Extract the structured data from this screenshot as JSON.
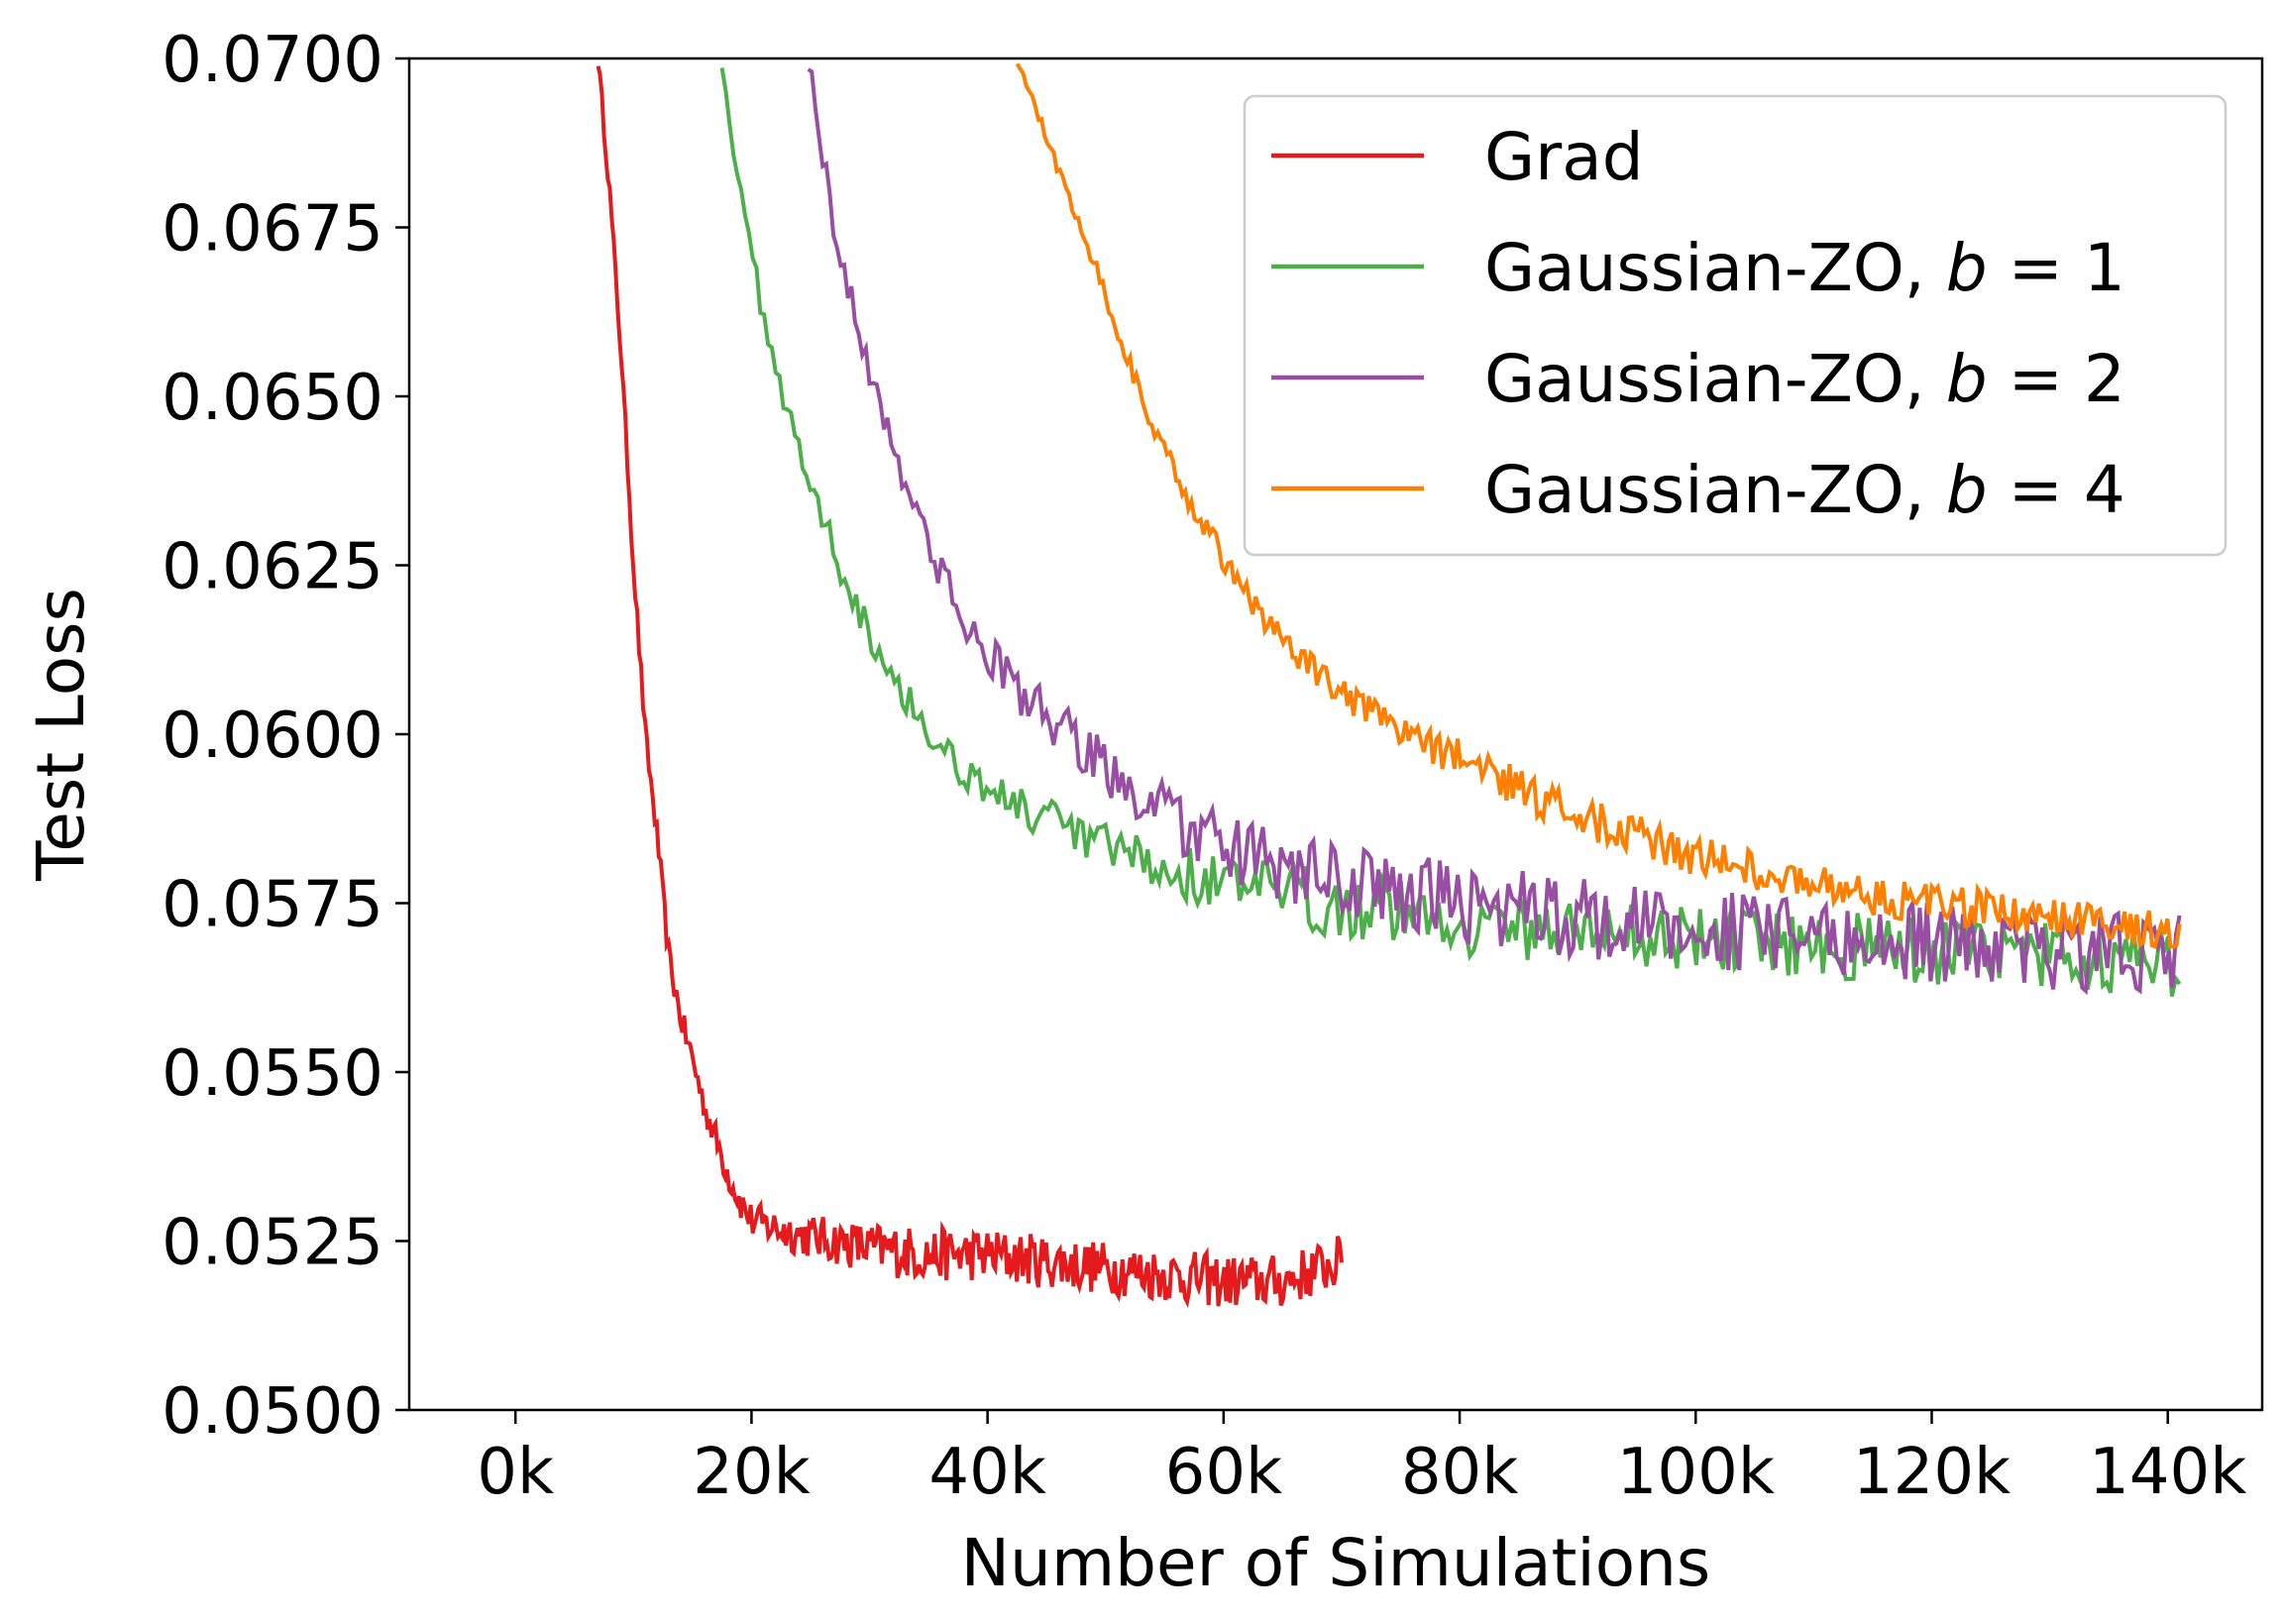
{
  "chart_data": {
    "type": "line",
    "title": "",
    "xlabel": "Number of Simulations",
    "ylabel": "Test Loss",
    "xlim": [
      -9000,
      148000
    ],
    "ylim": [
      0.05,
      0.07
    ],
    "xticks": [
      0,
      20000,
      40000,
      60000,
      80000,
      100000,
      120000,
      140000
    ],
    "xtick_labels": [
      "0k",
      "20k",
      "40k",
      "60k",
      "80k",
      "100k",
      "120k",
      "140k"
    ],
    "yticks": [
      0.05,
      0.0525,
      0.055,
      0.0575,
      0.06,
      0.0625,
      0.065,
      0.0675,
      0.07
    ],
    "ytick_labels": [
      "0.0500",
      "0.0525",
      "0.0550",
      "0.0575",
      "0.0600",
      "0.0625",
      "0.0650",
      "0.0675",
      "0.0700"
    ],
    "grid": false,
    "legend_position": "top-right",
    "series": [
      {
        "name": "Grad",
        "label_main": "Grad",
        "label_var": "",
        "label_rest": "",
        "color": "#e41a1c",
        "noise": 0.0004,
        "x": [
          7000,
          8000,
          9000,
          10000,
          11000,
          12000,
          13000,
          14000,
          15000,
          16000,
          17000,
          18000,
          19000,
          20000,
          22000,
          24000,
          27000,
          30000,
          35000,
          40000,
          45000,
          50000,
          55000,
          60000,
          65000,
          70000
        ],
        "y": [
          0.07,
          0.068,
          0.0655,
          0.0625,
          0.06,
          0.0585,
          0.0567,
          0.0558,
          0.0552,
          0.0545,
          0.054,
          0.0535,
          0.0531,
          0.0528,
          0.0527,
          0.0526,
          0.0525,
          0.0524,
          0.0523,
          0.0523,
          0.0522,
          0.0521,
          0.052,
          0.0519,
          0.0519,
          0.0522
        ]
      },
      {
        "name": "Gaussian-ZO, b = 1",
        "label_main": "Gaussian-ZO, ",
        "label_var": "b",
        "label_rest": " = 1",
        "color": "#4daf4a",
        "noise": 0.0005,
        "x": [
          17500,
          19000,
          21000,
          23000,
          25000,
          27500,
          30000,
          33000,
          36000,
          40000,
          45000,
          50000,
          55000,
          60000,
          65000,
          70000,
          75000,
          80000,
          90000,
          100000,
          110000,
          120000,
          130000,
          141000
        ],
        "y": [
          0.07,
          0.068,
          0.0662,
          0.0648,
          0.0637,
          0.0625,
          0.0615,
          0.0606,
          0.0598,
          0.0592,
          0.0587,
          0.0583,
          0.058,
          0.0578,
          0.0576,
          0.0575,
          0.0574,
          0.0572,
          0.0571,
          0.057,
          0.0569,
          0.0568,
          0.0567,
          0.0566
        ]
      },
      {
        "name": "Gaussian-ZO, b = 2",
        "label_main": "Gaussian-ZO, ",
        "label_var": "b",
        "label_rest": " = 2",
        "color": "#984ea3",
        "noise": 0.0006,
        "x": [
          24800,
          27000,
          29000,
          31000,
          33000,
          35000,
          37000,
          40000,
          44000,
          48000,
          52000,
          56000,
          60000,
          65000,
          70000,
          80000,
          90000,
          100000,
          110000,
          120000,
          130000,
          141000
        ],
        "y": [
          0.07,
          0.0675,
          0.066,
          0.0648,
          0.0638,
          0.0628,
          0.062,
          0.0612,
          0.0604,
          0.0598,
          0.0592,
          0.0587,
          0.0583,
          0.058,
          0.0578,
          0.0575,
          0.0573,
          0.0571,
          0.057,
          0.0569,
          0.0568,
          0.0568
        ]
      },
      {
        "name": "Gaussian-ZO, b = 4",
        "label_main": "Gaussian-ZO, ",
        "label_var": "b",
        "label_rest": " = 4",
        "color": "#ff7f00",
        "noise": 0.0003,
        "x": [
          42500,
          45000,
          48000,
          51000,
          54000,
          57000,
          60000,
          63000,
          66000,
          70000,
          74000,
          78000,
          82000,
          86000,
          90000,
          95000,
          100000,
          105000,
          110000,
          115000,
          120000,
          125000,
          130000,
          135000,
          141000
        ],
        "y": [
          0.07,
          0.0688,
          0.0675,
          0.066,
          0.0645,
          0.0635,
          0.0626,
          0.0618,
          0.0612,
          0.0606,
          0.0601,
          0.0598,
          0.0595,
          0.0591,
          0.0588,
          0.0585,
          0.0582,
          0.058,
          0.0578,
          0.0576,
          0.0575,
          0.0574,
          0.0573,
          0.0572,
          0.0571
        ]
      }
    ]
  }
}
